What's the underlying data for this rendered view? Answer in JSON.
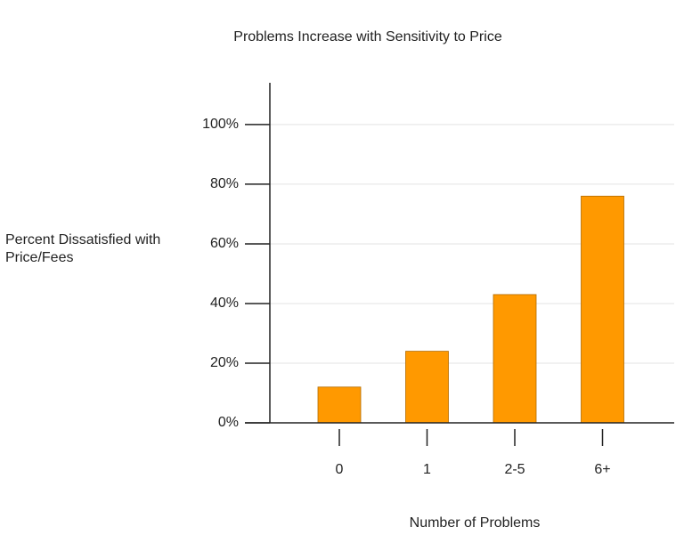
{
  "chart_data": {
    "type": "bar",
    "title": "Problems Increase with Sensitivity to Price",
    "x_label": "Number of Problems",
    "y_label": "Percent Dissatisfied with Price/Fees",
    "categories": [
      "0",
      "1",
      "2-5",
      "6+"
    ],
    "values": [
      12,
      24,
      43,
      76
    ],
    "color": "#ff9900",
    "ylim": [
      0,
      114
    ],
    "yticks": [
      {
        "value": 0,
        "label": "0%"
      },
      {
        "value": 20,
        "label": "20%"
      },
      {
        "value": 40,
        "label": "40%"
      },
      {
        "value": 60,
        "label": "60%"
      },
      {
        "value": 80,
        "label": "80%"
      },
      {
        "value": 100,
        "label": "100%"
      }
    ],
    "grid": true
  }
}
